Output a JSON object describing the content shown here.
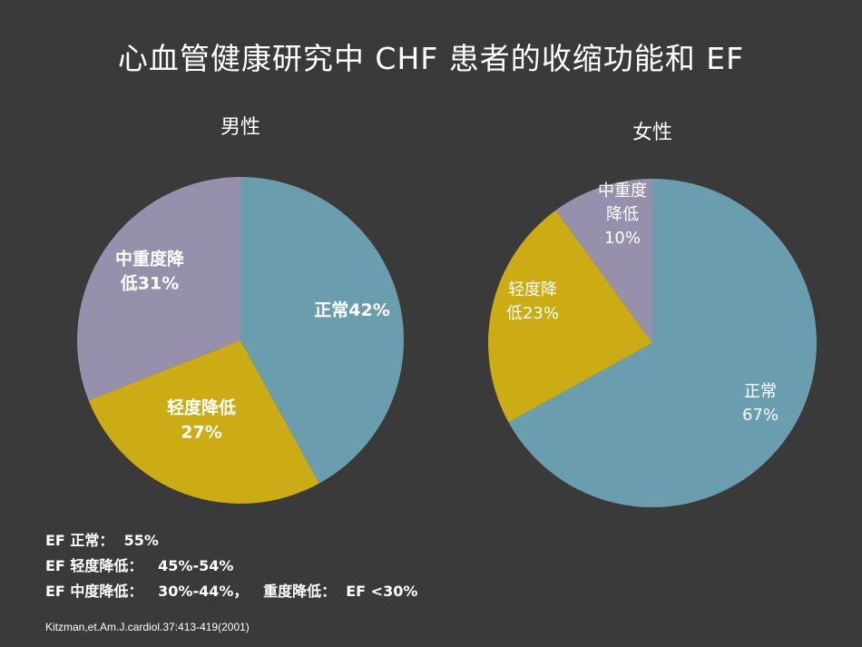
{
  "title": "心血管健康研究中 CHF 患者的收缩功能和 EF",
  "chart_data": [
    {
      "type": "pie",
      "title": "男性",
      "slices": [
        {
          "name": "正常",
          "value": 42,
          "label_lines": [
            "正常42%"
          ],
          "color": "#6a9eae"
        },
        {
          "name": "轻度降低",
          "value": 27,
          "label_lines": [
            "轻度降低",
            "27%"
          ],
          "color": "#ccac14"
        },
        {
          "name": "中重度降低",
          "value": 31,
          "label_lines": [
            "中重度降",
            "低31%"
          ],
          "color": "#9690ac"
        }
      ]
    },
    {
      "type": "pie",
      "title": "女性",
      "slices": [
        {
          "name": "正常",
          "value": 67,
          "label_lines": [
            "正常",
            "67%"
          ],
          "color": "#6a9eae"
        },
        {
          "name": "轻度降低",
          "value": 23,
          "label_lines": [
            "轻度降",
            "低23%"
          ],
          "color": "#ccac14"
        },
        {
          "name": "中重度降低",
          "value": 10,
          "label_lines": [
            "中重度",
            "降低",
            "10%"
          ],
          "color": "#9690ac"
        }
      ]
    }
  ],
  "legend": [
    "EF 正常：  55%",
    "EF 轻度降低：   45%-54%",
    "EF 中度降低：   30%-44%，   重度降低：  EF <30%"
  ],
  "citation": "Kitzman,et.Am.J.cardiol.37:413-419(2001)"
}
